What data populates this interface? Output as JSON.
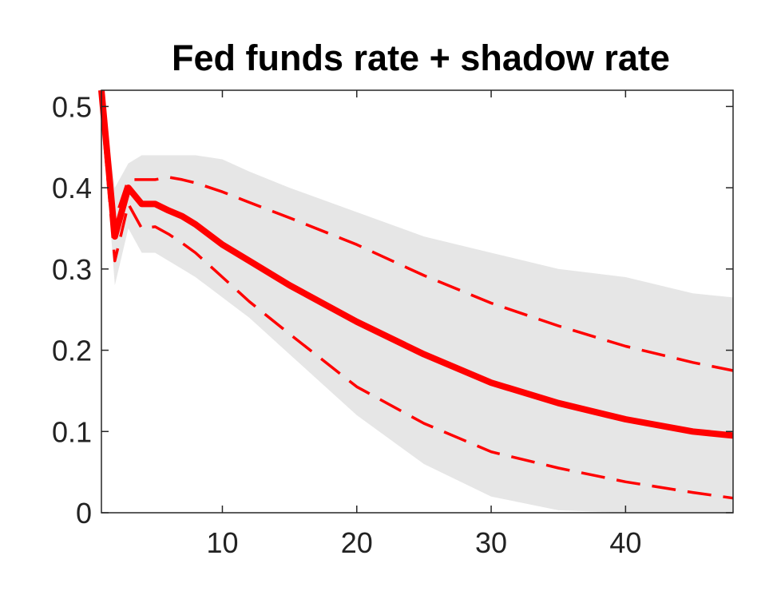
{
  "chart_data": {
    "type": "line",
    "title": "Fed funds rate + shadow rate",
    "xlabel": "",
    "ylabel": "",
    "xlim": [
      1,
      48
    ],
    "ylim": [
      0,
      0.52
    ],
    "xticks": [
      10,
      20,
      30,
      40
    ],
    "xtick_labels": [
      "10",
      "20",
      "30",
      "40"
    ],
    "yticks": [
      0,
      0.1,
      0.2,
      0.3,
      0.4,
      0.5
    ],
    "ytick_labels": [
      "0",
      "0.1",
      "0.2",
      "0.3",
      "0.4",
      "0.5"
    ],
    "grid": false,
    "legend": "none",
    "x": [
      1,
      2,
      3,
      4,
      5,
      6,
      7,
      8,
      10,
      12,
      15,
      20,
      25,
      30,
      35,
      40,
      45,
      48
    ],
    "band": {
      "color": "#e6e6e6",
      "lower": [
        0.5,
        0.28,
        0.35,
        0.32,
        0.32,
        0.31,
        0.3,
        0.29,
        0.265,
        0.24,
        0.195,
        0.12,
        0.06,
        0.02,
        0.003,
        0.0,
        0.0,
        0.0
      ],
      "upper": [
        0.52,
        0.4,
        0.43,
        0.44,
        0.44,
        0.44,
        0.44,
        0.44,
        0.435,
        0.42,
        0.4,
        0.37,
        0.34,
        0.32,
        0.3,
        0.29,
        0.27,
        0.265
      ]
    },
    "series": [
      {
        "style": "solid",
        "color": "#ff0000",
        "values": [
          0.52,
          0.34,
          0.4,
          0.38,
          0.38,
          0.372,
          0.365,
          0.355,
          0.33,
          0.31,
          0.28,
          0.235,
          0.195,
          0.16,
          0.135,
          0.115,
          0.1,
          0.095
        ]
      },
      {
        "style": "dashed",
        "color": "#ff0000",
        "values": [
          0.5,
          0.31,
          0.38,
          0.35,
          0.352,
          0.343,
          0.332,
          0.32,
          0.29,
          0.26,
          0.22,
          0.155,
          0.11,
          0.075,
          0.055,
          0.038,
          0.025,
          0.018
        ]
      },
      {
        "style": "dashed",
        "color": "#ff0000",
        "values": [
          0.52,
          0.36,
          0.41,
          0.41,
          0.41,
          0.413,
          0.41,
          0.406,
          0.395,
          0.382,
          0.363,
          0.33,
          0.292,
          0.258,
          0.23,
          0.205,
          0.185,
          0.175
        ]
      }
    ]
  }
}
